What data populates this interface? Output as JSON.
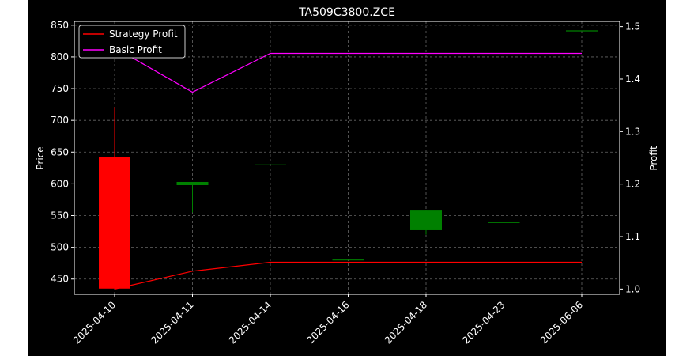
{
  "colors": {
    "background": "#000000",
    "foreground": "#ffffff",
    "up": "#008000",
    "down": "#ff0000",
    "strategy": "#ff0000",
    "basic": "#ff00ff",
    "grid": "#666666"
  },
  "chart_data": {
    "type": "candlestick",
    "title": "TA509C3800.ZCE",
    "ylabel_left": "Price",
    "ylabel_right": "Profit",
    "grid": true,
    "legend_position": "upper-left",
    "categories": [
      "2025-04-10",
      "2025-04-11",
      "2025-04-14",
      "2025-04-16",
      "2025-04-18",
      "2025-04-23",
      "2025-06-06"
    ],
    "left_axis": {
      "ylim": [
        426,
        856
      ],
      "ticks": [
        450,
        500,
        550,
        600,
        650,
        700,
        750,
        800,
        850
      ]
    },
    "right_axis": {
      "ylim": [
        0.99,
        1.51
      ],
      "ticks": [
        "1.0",
        "1.1",
        "1.2",
        "1.3",
        "1.4",
        "1.5"
      ]
    },
    "candles": [
      {
        "date": "2025-04-10",
        "open": 642,
        "high": 721,
        "low": 435,
        "close": 435
      },
      {
        "date": "2025-04-11",
        "open": 598,
        "high": 603,
        "low": 555,
        "close": 603
      },
      {
        "date": "2025-04-14",
        "open": 630,
        "high": 630,
        "low": 630,
        "close": 630
      },
      {
        "date": "2025-04-16",
        "open": 480,
        "high": 480,
        "low": 480,
        "close": 480
      },
      {
        "date": "2025-04-18",
        "open": 527,
        "high": 558,
        "low": 520,
        "close": 558
      },
      {
        "date": "2025-04-23",
        "open": 539,
        "high": 539,
        "low": 539,
        "close": 539
      },
      {
        "date": "2025-06-06",
        "open": 841,
        "high": 841,
        "low": 841,
        "close": 841
      }
    ],
    "series": [
      {
        "name": "Strategy Profit",
        "axis": "right",
        "values": [
          1.0,
          1.034,
          1.051,
          1.051,
          1.051,
          1.051,
          1.051
        ]
      },
      {
        "name": "Basic Profit",
        "axis": "right",
        "values": [
          1.46,
          1.375,
          1.449,
          1.449,
          1.449,
          1.449,
          1.449
        ]
      }
    ]
  }
}
